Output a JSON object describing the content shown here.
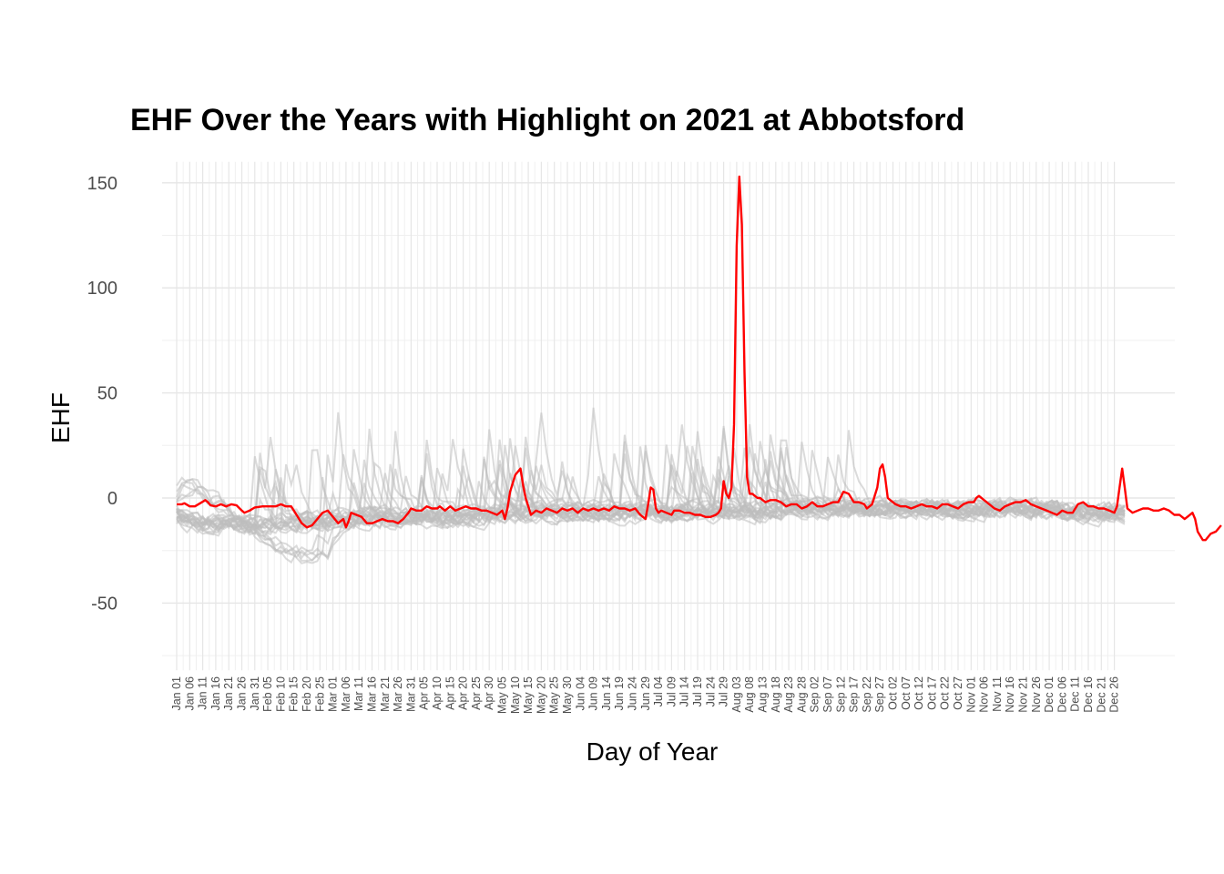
{
  "chart_data": {
    "type": "line",
    "title": "EHF Over the Years with Highlight on 2021 at Abbotsford",
    "xlabel": "Day of Year",
    "ylabel": "EHF",
    "ylim": [
      -82,
      160
    ],
    "y_ticks": [
      150,
      100,
      50,
      0,
      -50
    ],
    "x_ticks": [
      "Jan 01",
      "Jan 06",
      "Jan 11",
      "Jan 16",
      "Jan 21",
      "Jan 26",
      "Jan 31",
      "Feb 05",
      "Feb 10",
      "Feb 15",
      "Feb 20",
      "Feb 25",
      "Mar 01",
      "Mar 06",
      "Mar 11",
      "Mar 16",
      "Mar 21",
      "Mar 26",
      "Mar 31",
      "Apr 05",
      "Apr 10",
      "Apr 15",
      "Apr 20",
      "Apr 25",
      "Apr 30",
      "May 05",
      "May 10",
      "May 15",
      "May 20",
      "May 25",
      "May 30",
      "Jun 04",
      "Jun 09",
      "Jun 14",
      "Jun 19",
      "Jun 24",
      "Jun 29",
      "Jul 04",
      "Jul 09",
      "Jul 14",
      "Jul 19",
      "Jul 24",
      "Jul 29",
      "Aug 03",
      "Aug 08",
      "Aug 13",
      "Aug 18",
      "Aug 23",
      "Aug 28",
      "Sep 02",
      "Sep 07",
      "Sep 12",
      "Sep 17",
      "Sep 22",
      "Sep 27",
      "Oct 02",
      "Oct 07",
      "Oct 12",
      "Oct 17",
      "Oct 22",
      "Oct 27",
      "Nov 01",
      "Nov 06",
      "Nov 11",
      "Nov 16",
      "Nov 21",
      "Nov 26",
      "Dec 01",
      "Dec 06",
      "Dec 11",
      "Dec 16",
      "Dec 21",
      "Dec 26"
    ],
    "grid": true,
    "legend": "none",
    "highlight_color": "#ff0000",
    "background_color": "#bdbdbd",
    "series": [
      {
        "values": [
          [
            1,
            -3
          ],
          [
            3,
            -3
          ],
          [
            4,
            -2.5
          ],
          [
            6,
            -4
          ],
          [
            8,
            -4
          ],
          [
            10,
            -2.5
          ],
          [
            12,
            -1
          ],
          [
            13,
            -2
          ],
          [
            14,
            -3.5
          ],
          [
            16,
            -4
          ],
          [
            18,
            -3
          ],
          [
            20,
            -4
          ],
          [
            22,
            -3
          ],
          [
            24,
            -3.5
          ],
          [
            26,
            -6
          ],
          [
            27,
            -7
          ],
          [
            29,
            -6
          ],
          [
            31,
            -4.5
          ],
          [
            34,
            -4
          ],
          [
            37,
            -4
          ],
          [
            39,
            -4
          ],
          [
            41,
            -3
          ],
          [
            43,
            -4
          ],
          [
            45,
            -4
          ],
          [
            47,
            -8
          ],
          [
            49,
            -12
          ],
          [
            51,
            -14
          ],
          [
            53,
            -13
          ],
          [
            55,
            -10
          ],
          [
            57,
            -7
          ],
          [
            59,
            -6
          ],
          [
            61,
            -9
          ],
          [
            63,
            -12
          ],
          [
            65,
            -10
          ],
          [
            66,
            -14
          ],
          [
            67,
            -11
          ],
          [
            68,
            -7
          ],
          [
            70,
            -8
          ],
          [
            72,
            -9
          ],
          [
            74,
            -12
          ],
          [
            76,
            -12
          ],
          [
            78,
            -11
          ],
          [
            80,
            -10
          ],
          [
            82,
            -11
          ],
          [
            84,
            -11
          ],
          [
            86,
            -12
          ],
          [
            88,
            -10
          ],
          [
            90,
            -7
          ],
          [
            91,
            -5
          ],
          [
            93,
            -6
          ],
          [
            95,
            -6
          ],
          [
            97,
            -4
          ],
          [
            99,
            -5
          ],
          [
            101,
            -5
          ],
          [
            102,
            -4
          ],
          [
            104,
            -6
          ],
          [
            106,
            -4
          ],
          [
            108,
            -6
          ],
          [
            110,
            -5
          ],
          [
            112,
            -4
          ],
          [
            114,
            -5
          ],
          [
            116,
            -5
          ],
          [
            118,
            -6
          ],
          [
            120,
            -6
          ],
          [
            122,
            -7
          ],
          [
            124,
            -8
          ],
          [
            126,
            -6
          ],
          [
            127,
            -10
          ],
          [
            128,
            -5
          ],
          [
            129,
            3
          ],
          [
            131,
            11
          ],
          [
            133,
            14
          ],
          [
            134,
            6
          ],
          [
            135,
            0
          ],
          [
            137,
            -8
          ],
          [
            139,
            -6
          ],
          [
            141,
            -7
          ],
          [
            143,
            -5
          ],
          [
            145,
            -6
          ],
          [
            147,
            -7
          ],
          [
            149,
            -5
          ],
          [
            151,
            -6
          ],
          [
            153,
            -5
          ],
          [
            155,
            -7
          ],
          [
            157,
            -5
          ],
          [
            159,
            -6
          ],
          [
            161,
            -5
          ],
          [
            163,
            -6
          ],
          [
            165,
            -5
          ],
          [
            167,
            -6
          ],
          [
            169,
            -4
          ],
          [
            171,
            -5
          ],
          [
            173,
            -5
          ],
          [
            175,
            -6
          ],
          [
            177,
            -5
          ],
          [
            179,
            -8
          ],
          [
            181,
            -10
          ],
          [
            182,
            -3
          ],
          [
            183,
            5
          ],
          [
            184,
            4
          ],
          [
            185,
            -5
          ],
          [
            186,
            -7
          ],
          [
            187,
            -6
          ],
          [
            189,
            -7
          ],
          [
            191,
            -8
          ],
          [
            192,
            -6
          ],
          [
            194,
            -6
          ],
          [
            196,
            -7
          ],
          [
            198,
            -7
          ],
          [
            200,
            -8
          ],
          [
            202,
            -8
          ],
          [
            204,
            -9
          ],
          [
            206,
            -9
          ],
          [
            208,
            -8
          ],
          [
            209,
            -7
          ],
          [
            210,
            -5
          ],
          [
            211,
            8
          ],
          [
            212,
            2
          ],
          [
            213,
            0
          ],
          [
            214,
            5
          ],
          [
            215,
            35
          ],
          [
            216,
            120
          ],
          [
            217,
            153
          ],
          [
            218,
            130
          ],
          [
            219,
            60
          ],
          [
            220,
            10
          ],
          [
            221,
            2
          ],
          [
            222,
            2
          ],
          [
            224,
            0
          ],
          [
            225,
            0
          ],
          [
            227,
            -2
          ],
          [
            229,
            -1
          ],
          [
            231,
            -1
          ],
          [
            233,
            -2
          ],
          [
            235,
            -4
          ],
          [
            237,
            -3
          ],
          [
            239,
            -3
          ],
          [
            241,
            -5
          ],
          [
            243,
            -4
          ],
          [
            245,
            -2
          ],
          [
            247,
            -4
          ],
          [
            249,
            -4
          ],
          [
            251,
            -3
          ],
          [
            253,
            -2
          ],
          [
            255,
            -2
          ],
          [
            257,
            3
          ],
          [
            259,
            2
          ],
          [
            261,
            -2
          ],
          [
            263,
            -2
          ],
          [
            265,
            -3
          ],
          [
            266,
            -5
          ],
          [
            268,
            -3
          ],
          [
            270,
            5
          ],
          [
            271,
            14
          ],
          [
            272,
            16
          ],
          [
            273,
            10
          ],
          [
            274,
            0
          ],
          [
            275,
            -1
          ],
          [
            277,
            -3
          ],
          [
            279,
            -4
          ],
          [
            281,
            -4
          ],
          [
            283,
            -5
          ],
          [
            285,
            -4
          ],
          [
            287,
            -3
          ],
          [
            289,
            -4
          ],
          [
            291,
            -4
          ],
          [
            293,
            -5
          ],
          [
            295,
            -3
          ],
          [
            297,
            -3
          ],
          [
            299,
            -4
          ],
          [
            301,
            -5
          ],
          [
            303,
            -3
          ],
          [
            305,
            -2
          ],
          [
            307,
            -2
          ],
          [
            308,
            0
          ],
          [
            309,
            1
          ],
          [
            311,
            -1
          ],
          [
            313,
            -3
          ],
          [
            315,
            -5
          ],
          [
            317,
            -6
          ],
          [
            319,
            -4
          ],
          [
            321,
            -3
          ],
          [
            323,
            -2
          ],
          [
            325,
            -2
          ],
          [
            327,
            -1
          ],
          [
            329,
            -3
          ],
          [
            331,
            -4
          ],
          [
            333,
            -5
          ],
          [
            335,
            -6
          ],
          [
            337,
            -7
          ],
          [
            339,
            -8
          ],
          [
            341,
            -6
          ],
          [
            343,
            -7
          ],
          [
            345,
            -7
          ],
          [
            347,
            -3
          ],
          [
            349,
            -2
          ],
          [
            351,
            -4
          ],
          [
            353,
            -4
          ],
          [
            355,
            -5
          ],
          [
            357,
            -5
          ],
          [
            359,
            -6
          ],
          [
            361,
            -7
          ],
          [
            362,
            -4
          ],
          [
            363,
            5
          ],
          [
            364,
            14
          ],
          [
            365,
            5
          ],
          [
            366,
            -5
          ],
          [
            368,
            -7
          ],
          [
            370,
            -6
          ],
          [
            372,
            -5
          ],
          [
            374,
            -5
          ],
          [
            376,
            -6
          ],
          [
            378,
            -6
          ],
          [
            380,
            -5
          ],
          [
            382,
            -6
          ],
          [
            384,
            -8
          ],
          [
            386,
            -8
          ],
          [
            388,
            -10
          ],
          [
            389,
            -9
          ],
          [
            391,
            -7
          ],
          [
            392,
            -10
          ],
          [
            393,
            -16
          ],
          [
            395,
            -20
          ],
          [
            396,
            -20
          ],
          [
            398,
            -17
          ],
          [
            400,
            -16
          ],
          [
            402,
            -13
          ]
        ],
        "color": "#ff0000"
      }
    ]
  }
}
